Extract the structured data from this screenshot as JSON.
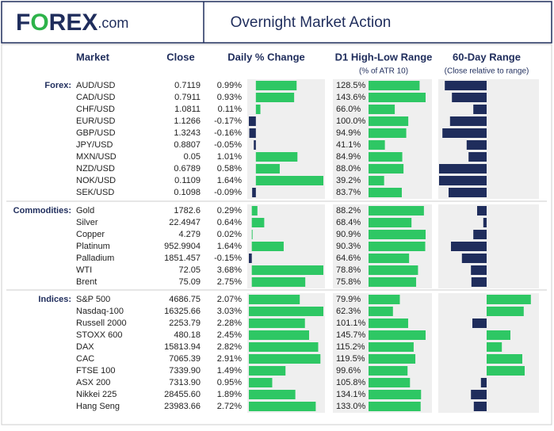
{
  "header": {
    "logo": [
      "F",
      "O",
      "REX",
      ".com"
    ],
    "title": "Overnight Market Action"
  },
  "columns": {
    "market": "Market",
    "close": "Close",
    "change": "Daily % Change",
    "range": "D1 High-Low Range",
    "range_sub": "(% of ATR 10)",
    "pos": "60-Day Range",
    "pos_sub": "(Close relative to range)"
  },
  "groups": [
    {
      "label": "Forex:",
      "rows": [
        {
          "market": "AUD/USD",
          "close": "0.7119",
          "change": {
            "value": 0.99,
            "label": "0.99%"
          },
          "range": {
            "value": 128.5,
            "label": "128.5%"
          },
          "pos": -88
        },
        {
          "market": "CAD/USD",
          "close": "0.7911",
          "change": {
            "value": 0.93,
            "label": "0.93%"
          },
          "range": {
            "value": 143.6,
            "label": "143.6%"
          },
          "pos": -73
        },
        {
          "market": "CHF/USD",
          "close": "1.0811",
          "change": {
            "value": 0.11,
            "label": "0.11%"
          },
          "range": {
            "value": 66.0,
            "label": "66.0%"
          },
          "pos": -28
        },
        {
          "market": "EUR/USD",
          "close": "1.1266",
          "change": {
            "value": -0.17,
            "label": "-0.17%"
          },
          "range": {
            "value": 100.0,
            "label": "100.0%"
          },
          "pos": -77
        },
        {
          "market": "GBP/USD",
          "close": "1.3243",
          "change": {
            "value": -0.16,
            "label": "-0.16%"
          },
          "range": {
            "value": 94.9,
            "label": "94.9%"
          },
          "pos": -93
        },
        {
          "market": "JPY/USD",
          "close": "0.8807",
          "change": {
            "value": -0.05,
            "label": "-0.05%"
          },
          "range": {
            "value": 41.1,
            "label": "41.1%"
          },
          "pos": -42
        },
        {
          "market": "MXN/USD",
          "close": "0.05",
          "change": {
            "value": 1.01,
            "label": "1.01%"
          },
          "range": {
            "value": 84.9,
            "label": "84.9%"
          },
          "pos": -38
        },
        {
          "market": "NZD/USD",
          "close": "0.6789",
          "change": {
            "value": 0.58,
            "label": "0.58%"
          },
          "range": {
            "value": 88.0,
            "label": "88.0%"
          },
          "pos": -100
        },
        {
          "market": "NOK/USD",
          "close": "0.1109",
          "change": {
            "value": 1.64,
            "label": "1.64%"
          },
          "range": {
            "value": 39.2,
            "label": "39.2%"
          },
          "pos": -100
        },
        {
          "market": "SEK/USD",
          "close": "0.1098",
          "change": {
            "value": -0.09,
            "label": "-0.09%"
          },
          "range": {
            "value": 83.7,
            "label": "83.7%"
          },
          "pos": -80
        }
      ]
    },
    {
      "label": "Commodities:",
      "rows": [
        {
          "market": "Gold",
          "close": "1782.6",
          "change": {
            "value": 0.29,
            "label": "0.29%"
          },
          "range": {
            "value": 88.2,
            "label": "88.2%"
          },
          "pos": -20
        },
        {
          "market": "Silver",
          "close": "22.4947",
          "change": {
            "value": 0.64,
            "label": "0.64%"
          },
          "range": {
            "value": 68.4,
            "label": "68.4%"
          },
          "pos": -7
        },
        {
          "market": "Copper",
          "close": "4.279",
          "change": {
            "value": 0.02,
            "label": "0.02%"
          },
          "range": {
            "value": 90.9,
            "label": "90.9%"
          },
          "pos": -28
        },
        {
          "market": "Platinum",
          "close": "952.9904",
          "change": {
            "value": 1.64,
            "label": "1.64%"
          },
          "range": {
            "value": 90.3,
            "label": "90.3%"
          },
          "pos": -75
        },
        {
          "market": "Palladium",
          "close": "1851.457",
          "change": {
            "value": -0.15,
            "label": "-0.15%"
          },
          "range": {
            "value": 64.6,
            "label": "64.6%"
          },
          "pos": -52
        },
        {
          "market": "WTI",
          "close": "72.05",
          "change": {
            "value": 3.68,
            "label": "3.68%"
          },
          "range": {
            "value": 78.8,
            "label": "78.8%"
          },
          "pos": -33
        },
        {
          "market": "Brent",
          "close": "75.09",
          "change": {
            "value": 2.75,
            "label": "2.75%"
          },
          "range": {
            "value": 75.8,
            "label": "75.8%"
          },
          "pos": -32
        }
      ]
    },
    {
      "label": "Indices:",
      "rows": [
        {
          "market": "S&P 500",
          "close": "4686.75",
          "change": {
            "value": 2.07,
            "label": "2.07%"
          },
          "range": {
            "value": 79.9,
            "label": "79.9%"
          },
          "pos": 93
        },
        {
          "market": "Nasdaq-100",
          "close": "16325.66",
          "change": {
            "value": 3.03,
            "label": "3.03%"
          },
          "range": {
            "value": 62.3,
            "label": "62.3%"
          },
          "pos": 78
        },
        {
          "market": "Russell 2000",
          "close": "2253.79",
          "change": {
            "value": 2.28,
            "label": "2.28%"
          },
          "range": {
            "value": 101.1,
            "label": "101.1%"
          },
          "pos": -30
        },
        {
          "market": "STOXX 600",
          "close": "480.18",
          "change": {
            "value": 2.45,
            "label": "2.45%"
          },
          "range": {
            "value": 145.7,
            "label": "145.7%"
          },
          "pos": 50
        },
        {
          "market": "DAX",
          "close": "15813.94",
          "change": {
            "value": 2.82,
            "label": "2.82%"
          },
          "range": {
            "value": 115.2,
            "label": "115.2%"
          },
          "pos": 32
        },
        {
          "market": "CAC",
          "close": "7065.39",
          "change": {
            "value": 2.91,
            "label": "2.91%"
          },
          "range": {
            "value": 119.5,
            "label": "119.5%"
          },
          "pos": 75
        },
        {
          "market": "FTSE 100",
          "close": "7339.90",
          "change": {
            "value": 1.49,
            "label": "1.49%"
          },
          "range": {
            "value": 99.6,
            "label": "99.6%"
          },
          "pos": 80
        },
        {
          "market": "ASX 200",
          "close": "7313.90",
          "change": {
            "value": 0.95,
            "label": "0.95%"
          },
          "range": {
            "value": 105.8,
            "label": "105.8%"
          },
          "pos": -12
        },
        {
          "market": "Nikkei 225",
          "close": "28455.60",
          "change": {
            "value": 1.89,
            "label": "1.89%"
          },
          "range": {
            "value": 134.1,
            "label": "134.1%"
          },
          "pos": -33
        },
        {
          "market": "Hang Seng",
          "close": "23983.66",
          "change": {
            "value": 2.72,
            "label": "2.72%"
          },
          "range": {
            "value": 133.0,
            "label": "133.0%"
          },
          "pos": -27
        }
      ]
    }
  ]
}
